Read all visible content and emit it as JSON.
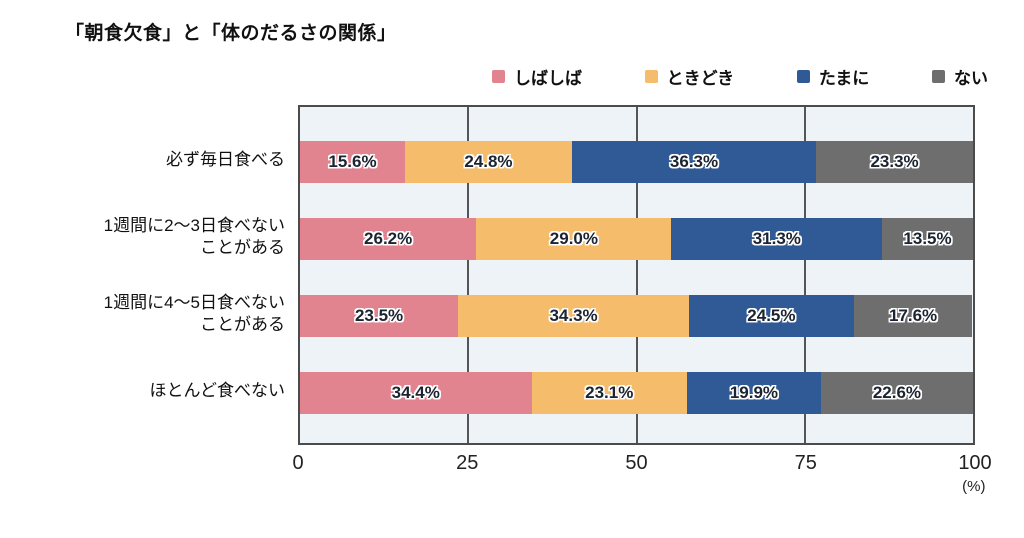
{
  "chart_data": {
    "type": "bar",
    "orientation": "horizontal",
    "stacked": true,
    "title": "「朝食欠食」と「体のだるさの関係」",
    "x_axis": {
      "min": 0,
      "max": 100,
      "ticks": [
        "0",
        "25",
        "50",
        "75",
        "100"
      ],
      "unit_label": "(%)"
    },
    "legend_position": "top-right",
    "grid": "vertical-lines-at-25-50-75",
    "legend": [
      {
        "name": "しばしば",
        "color": "#e2848f"
      },
      {
        "name": "ときどき",
        "color": "#f5bc6b"
      },
      {
        "name": "たまに",
        "color": "#2f5a96"
      },
      {
        "name": "ない",
        "color": "#6e6e6e"
      }
    ],
    "categories": [
      "必ず毎日食べる",
      "1週間に2〜3日食べない\nことがある",
      "1週間に4〜5日食べない\nことがある",
      "ほとんど食べない"
    ],
    "series": [
      {
        "name": "しばしば",
        "values": [
          15.6,
          26.2,
          23.5,
          34.4
        ]
      },
      {
        "name": "ときどき",
        "values": [
          24.8,
          29.0,
          34.3,
          23.1
        ]
      },
      {
        "name": "たまに",
        "values": [
          36.3,
          31.3,
          24.5,
          19.9
        ]
      },
      {
        "name": "ない",
        "values": [
          23.3,
          13.5,
          17.6,
          22.6
        ]
      }
    ],
    "value_labels": [
      [
        "15.6%",
        "24.8%",
        "36.3%",
        "23.3%"
      ],
      [
        "26.2%",
        "29.0%",
        "31.3%",
        "13.5%"
      ],
      [
        "23.5%",
        "34.3%",
        "24.5%",
        "17.6%"
      ],
      [
        "34.4%",
        "23.1%",
        "19.9%",
        "22.6%"
      ]
    ],
    "colors": {
      "plot_background": "#eef3f7",
      "plot_border": "#4b4b4b",
      "gridline": "#555555",
      "page_background": "#ffffff",
      "text": "#111111"
    }
  }
}
